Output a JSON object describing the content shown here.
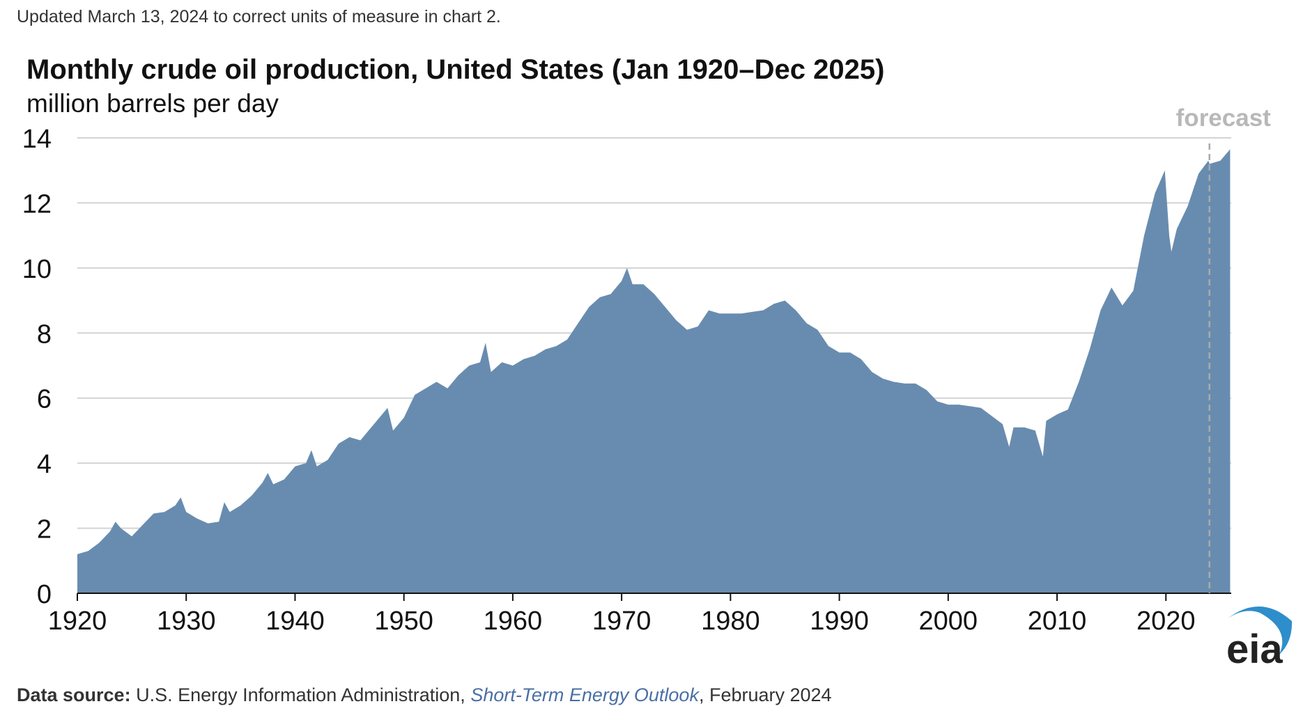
{
  "note": "Updated March 13, 2024 to correct units of measure in chart 2.",
  "source": {
    "label": "Data source:",
    "text": "U.S. Energy Information Administration,",
    "publication": "Short-Term Energy Outlook",
    "date": ", February 2024"
  },
  "logo": {
    "text": "eia",
    "text_color": "#222222",
    "arc_color": "#2e8ecb"
  },
  "chart_data": {
    "type": "area",
    "title": "Monthly crude oil production, United States (Jan 1920–Dec 2025)",
    "subtitle": "million barrels per day",
    "xlabel": "",
    "ylabel": "",
    "xlim": [
      1920,
      2026
    ],
    "ylim": [
      0,
      14
    ],
    "x_ticks": [
      "1920",
      "1930",
      "1940",
      "1950",
      "1960",
      "1970",
      "1980",
      "1990",
      "2000",
      "2010",
      "2020"
    ],
    "y_ticks": [
      "0",
      "2",
      "4",
      "6",
      "8",
      "10",
      "12",
      "14"
    ],
    "grid": true,
    "forecast_label": "forecast",
    "forecast_start": 2024.0,
    "fill_color": "#688caf",
    "grid_color": "#d3d3d3",
    "forecast_color": "#aaaaaa",
    "series": [
      {
        "x": [
          1920,
          1921,
          1922,
          1923,
          1923.5,
          1924,
          1925,
          1926,
          1927,
          1928,
          1929,
          1929.5,
          1930,
          1931,
          1932,
          1933,
          1933.5,
          1934,
          1935,
          1936,
          1937,
          1937.5,
          1938,
          1939,
          1940,
          1941,
          1941.5,
          1942,
          1943,
          1944,
          1945,
          1946,
          1947,
          1948,
          1948.5,
          1949,
          1950,
          1951,
          1952,
          1953,
          1954,
          1955,
          1956,
          1957,
          1957.5,
          1958,
          1959,
          1960,
          1961,
          1962,
          1963,
          1964,
          1965,
          1966,
          1967,
          1968,
          1969,
          1970,
          1970.5,
          1971,
          1972,
          1973,
          1974,
          1975,
          1976,
          1977,
          1978,
          1979,
          1980,
          1981,
          1982,
          1983,
          1984,
          1985,
          1986,
          1987,
          1988,
          1989,
          1990,
          1991,
          1992,
          1993,
          1994,
          1995,
          1996,
          1997,
          1998,
          1999,
          2000,
          2001,
          2002,
          2003,
          2004,
          2005,
          2005.6,
          2006,
          2007,
          2008,
          2008.7,
          2009,
          2010,
          2011,
          2012,
          2013,
          2014,
          2015,
          2016,
          2017,
          2018,
          2019,
          2019.9,
          2020.3,
          2020.5,
          2021,
          2022,
          2023,
          2023.9,
          2024,
          2025,
          2025.9
        ],
        "y": [
          1.2,
          1.3,
          1.55,
          1.9,
          2.2,
          2.0,
          1.75,
          2.1,
          2.45,
          2.5,
          2.7,
          2.95,
          2.5,
          2.3,
          2.15,
          2.2,
          2.8,
          2.5,
          2.7,
          3.0,
          3.4,
          3.7,
          3.35,
          3.5,
          3.9,
          4.0,
          4.4,
          3.9,
          4.1,
          4.6,
          4.8,
          4.7,
          5.1,
          5.5,
          5.7,
          5.0,
          5.4,
          6.1,
          6.3,
          6.5,
          6.3,
          6.7,
          7.0,
          7.1,
          7.7,
          6.8,
          7.1,
          7.0,
          7.2,
          7.3,
          7.5,
          7.6,
          7.8,
          8.3,
          8.8,
          9.1,
          9.2,
          9.6,
          10.0,
          9.5,
          9.5,
          9.2,
          8.8,
          8.4,
          8.1,
          8.2,
          8.7,
          8.6,
          8.6,
          8.6,
          8.65,
          8.7,
          8.9,
          9.0,
          8.7,
          8.3,
          8.1,
          7.6,
          7.4,
          7.4,
          7.2,
          6.8,
          6.6,
          6.5,
          6.45,
          6.45,
          6.25,
          5.9,
          5.8,
          5.8,
          5.75,
          5.7,
          5.45,
          5.2,
          4.5,
          5.1,
          5.1,
          5.0,
          4.2,
          5.3,
          5.5,
          5.65,
          6.5,
          7.5,
          8.7,
          9.4,
          8.85,
          9.3,
          11.0,
          12.3,
          13.0,
          11.0,
          10.5,
          11.2,
          11.9,
          12.9,
          13.3,
          13.2,
          13.3,
          13.65
        ]
      }
    ]
  }
}
